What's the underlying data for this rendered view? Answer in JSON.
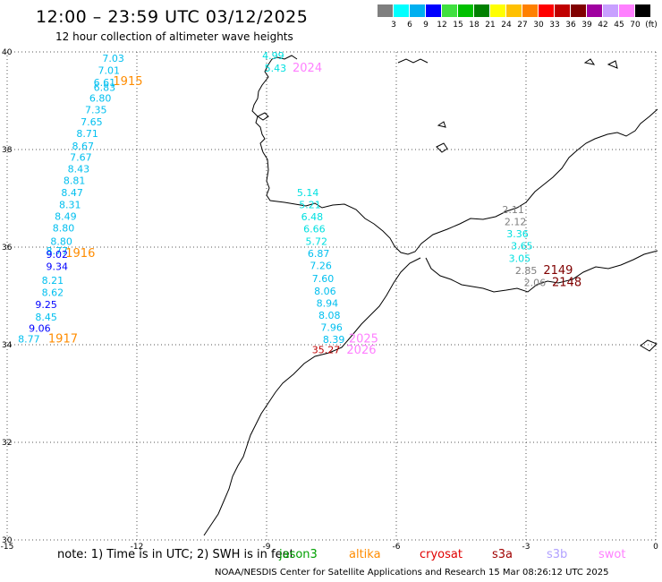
{
  "title": "12:00 – 23:59 UTC 03/12/2025",
  "subtitle": "12 hour collection of altimeter wave heights",
  "colorbar": {
    "unit": "(ft)",
    "labels": [
      "3",
      "6",
      "9",
      "12",
      "15",
      "18",
      "21",
      "24",
      "27",
      "30",
      "33",
      "36",
      "39",
      "42",
      "45",
      "70"
    ],
    "colors": [
      "#7f7f7f",
      "#00ffff",
      "#00b0f0",
      "#0000ff",
      "#40e040",
      "#00c000",
      "#008000",
      "#ffff00",
      "#ffc000",
      "#ff8000",
      "#ff0000",
      "#c00000",
      "#800000",
      "#a000a0",
      "#c8a0ff",
      "#ff80ff",
      "#000000"
    ]
  },
  "axes": {
    "x_ticks": [
      "-15",
      "-12",
      "-9",
      "-6",
      "-3",
      "0"
    ],
    "y_ticks": [
      "40",
      "38",
      "36",
      "34",
      "32",
      "30"
    ]
  },
  "note": "note: 1) Time is in UTC; 2) SWH is in feet",
  "legend": [
    {
      "label": "jason3",
      "color": "#00a000"
    },
    {
      "label": "altika",
      "color": "#ff8c00"
    },
    {
      "label": "cryosat",
      "color": "#e00000"
    },
    {
      "label": "s3a",
      "color": "#a00000"
    },
    {
      "label": "s3b",
      "color": "#b0a0ff"
    },
    {
      "label": "swot",
      "color": "#ff80ff"
    }
  ],
  "footer": "NOAA/NESDIS Center for Satellite Applications and Research    15 Mar 08:26:12 UTC 2025",
  "wave_labels": [
    {
      "t": "7.03",
      "lon": -12.8,
      "lat": 39.8,
      "c": "#00bfef"
    },
    {
      "t": "7.01",
      "lon": -12.9,
      "lat": 39.55,
      "c": "#00bfef"
    },
    {
      "t": "6.61",
      "lon": -13.0,
      "lat": 39.3,
      "c": "#00bfef"
    },
    {
      "t": "6.83",
      "lon": -13.0,
      "lat": 39.2,
      "c": "#00bfef"
    },
    {
      "t": "6.80",
      "lon": -13.1,
      "lat": 38.98,
      "c": "#00bfef"
    },
    {
      "t": "7.35",
      "lon": -13.2,
      "lat": 38.74,
      "c": "#00bfef"
    },
    {
      "t": "7.65",
      "lon": -13.3,
      "lat": 38.5,
      "c": "#00bfef"
    },
    {
      "t": "8.71",
      "lon": -13.4,
      "lat": 38.26,
      "c": "#00bfef"
    },
    {
      "t": "8.67",
      "lon": -13.5,
      "lat": 38.0,
      "c": "#00bfef"
    },
    {
      "t": "7.67",
      "lon": -13.55,
      "lat": 37.77,
      "c": "#00bfef"
    },
    {
      "t": "8.43",
      "lon": -13.6,
      "lat": 37.53,
      "c": "#00bfef"
    },
    {
      "t": "8.81",
      "lon": -13.7,
      "lat": 37.29,
      "c": "#00bfef"
    },
    {
      "t": "8.47",
      "lon": -13.75,
      "lat": 37.05,
      "c": "#00bfef"
    },
    {
      "t": "8.31",
      "lon": -13.8,
      "lat": 36.8,
      "c": "#00bfef"
    },
    {
      "t": "8.49",
      "lon": -13.9,
      "lat": 36.56,
      "c": "#00bfef"
    },
    {
      "t": "8.80",
      "lon": -13.95,
      "lat": 36.32,
      "c": "#00bfef"
    },
    {
      "t": "8.80",
      "lon": -14.0,
      "lat": 36.05,
      "c": "#00bfef"
    },
    {
      "t": "8.77",
      "lon": -14.1,
      "lat": 35.85,
      "c": "#00bfef"
    },
    {
      "t": "9.02",
      "lon": -14.1,
      "lat": 35.78,
      "c": "#0000ff"
    },
    {
      "t": "9.34",
      "lon": -14.1,
      "lat": 35.53,
      "c": "#0000ff"
    },
    {
      "t": "8.21",
      "lon": -14.2,
      "lat": 35.25,
      "c": "#00bfef"
    },
    {
      "t": "8.62",
      "lon": -14.2,
      "lat": 35.0,
      "c": "#00bfef"
    },
    {
      "t": "9.25",
      "lon": -14.35,
      "lat": 34.75,
      "c": "#0000ff"
    },
    {
      "t": "8.45",
      "lon": -14.35,
      "lat": 34.5,
      "c": "#00bfef"
    },
    {
      "t": "9.06",
      "lon": -14.5,
      "lat": 34.27,
      "c": "#0000ff"
    },
    {
      "t": "8.77",
      "lon": -14.75,
      "lat": 34.05,
      "c": "#00bfef"
    },
    {
      "t": "1915",
      "lon": -12.55,
      "lat": 39.32,
      "c": "#ff8c00",
      "big": true
    },
    {
      "t": "1916",
      "lon": -13.65,
      "lat": 35.8,
      "c": "#ff8c00",
      "big": true
    },
    {
      "t": "1917",
      "lon": -14.05,
      "lat": 34.05,
      "c": "#ff8c00",
      "big": true
    },
    {
      "t": "4.99",
      "lon": -9.1,
      "lat": 39.85,
      "c": "#00e0e0"
    },
    {
      "t": "5.43",
      "lon": -9.05,
      "lat": 39.6,
      "c": "#00e0e0"
    },
    {
      "t": "2024",
      "lon": -8.4,
      "lat": 39.6,
      "c": "#ff80ff",
      "big": true
    },
    {
      "t": "5.14",
      "lon": -8.3,
      "lat": 37.05,
      "c": "#00e0e0"
    },
    {
      "t": "5.21",
      "lon": -8.25,
      "lat": 36.8,
      "c": "#00e0e0"
    },
    {
      "t": "6.48",
      "lon": -8.2,
      "lat": 36.55,
      "c": "#00e0e0"
    },
    {
      "t": "6.66",
      "lon": -8.15,
      "lat": 36.3,
      "c": "#00e0e0"
    },
    {
      "t": "5.72",
      "lon": -8.1,
      "lat": 36.05,
      "c": "#00e0e0"
    },
    {
      "t": "6.87",
      "lon": -8.05,
      "lat": 35.8,
      "c": "#00bfef"
    },
    {
      "t": "7.26",
      "lon": -8.0,
      "lat": 35.55,
      "c": "#00bfef"
    },
    {
      "t": "7.60",
      "lon": -7.95,
      "lat": 35.28,
      "c": "#00bfef"
    },
    {
      "t": "8.06",
      "lon": -7.9,
      "lat": 35.03,
      "c": "#00bfef"
    },
    {
      "t": "8.94",
      "lon": -7.85,
      "lat": 34.78,
      "c": "#00bfef"
    },
    {
      "t": "8.08",
      "lon": -7.8,
      "lat": 34.53,
      "c": "#00bfef"
    },
    {
      "t": "7.96",
      "lon": -7.75,
      "lat": 34.28,
      "c": "#00bfef"
    },
    {
      "t": "8.39",
      "lon": -7.7,
      "lat": 34.04,
      "c": "#00bfef"
    },
    {
      "t": "35.27",
      "lon": -7.95,
      "lat": 33.83,
      "c": "#c00000"
    },
    {
      "t": "2025",
      "lon": -7.1,
      "lat": 34.05,
      "c": "#ff80ff",
      "big": true
    },
    {
      "t": "2026",
      "lon": -7.15,
      "lat": 33.82,
      "c": "#ff80ff",
      "big": true
    },
    {
      "t": "2.11",
      "lon": -3.55,
      "lat": 36.7,
      "c": "#7f7f7f"
    },
    {
      "t": "2.12",
      "lon": -3.5,
      "lat": 36.45,
      "c": "#7f7f7f"
    },
    {
      "t": "3.36",
      "lon": -3.45,
      "lat": 36.2,
      "c": "#00e0e0"
    },
    {
      "t": "3.65",
      "lon": -3.35,
      "lat": 35.95,
      "c": "#00e0e0"
    },
    {
      "t": "3.05",
      "lon": -3.4,
      "lat": 35.7,
      "c": "#00e0e0"
    },
    {
      "t": "2.85",
      "lon": -3.25,
      "lat": 35.45,
      "c": "#7f7f7f"
    },
    {
      "t": "2.06",
      "lon": -3.05,
      "lat": 35.2,
      "c": "#7f7f7f"
    },
    {
      "t": "2149",
      "lon": -2.6,
      "lat": 35.45,
      "c": "#800000",
      "big": true
    },
    {
      "t": "2148",
      "lon": -2.4,
      "lat": 35.2,
      "c": "#800000",
      "big": true
    }
  ]
}
